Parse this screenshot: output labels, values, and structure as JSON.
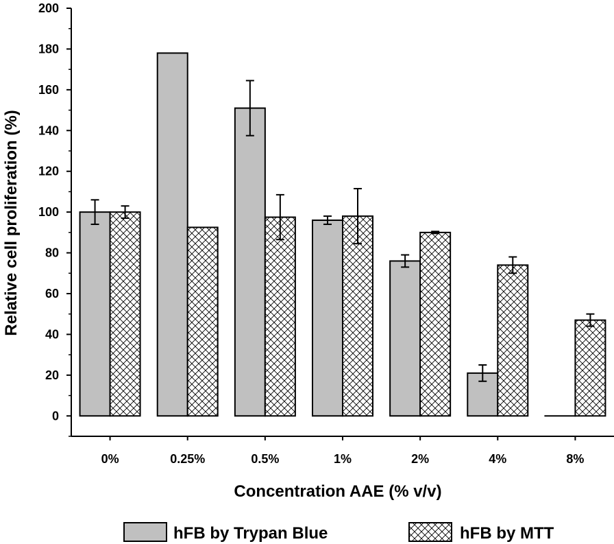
{
  "chart_data": {
    "type": "bar",
    "title": "",
    "xlabel": "Concentration AAE (% v/v)",
    "ylabel": "Relative cell proliferation (%)",
    "categories": [
      "0%",
      "0.25%",
      "0.5%",
      "1%",
      "2%",
      "4%",
      "8%"
    ],
    "ylim": [
      -10,
      200
    ],
    "yticks": [
      "0",
      "20",
      "40",
      "60",
      "80",
      "100",
      "120",
      "140",
      "160",
      "180",
      "200"
    ],
    "grid": false,
    "legend_position": "bottom",
    "series": [
      {
        "name": "hFB by Trypan Blue",
        "fill": "#c0c0c0",
        "pattern": "solid",
        "values": [
          100,
          178,
          151,
          96,
          76,
          21,
          0
        ],
        "errors": [
          6,
          0,
          13.5,
          2,
          3,
          4,
          0
        ]
      },
      {
        "name": "hFB by MTT",
        "fill": "#ffffff",
        "pattern": "crosshatch",
        "values": [
          100,
          92.5,
          97.5,
          98,
          90,
          74,
          47
        ],
        "errors": [
          3,
          0,
          11,
          13.5,
          0.5,
          4,
          3
        ]
      }
    ]
  }
}
